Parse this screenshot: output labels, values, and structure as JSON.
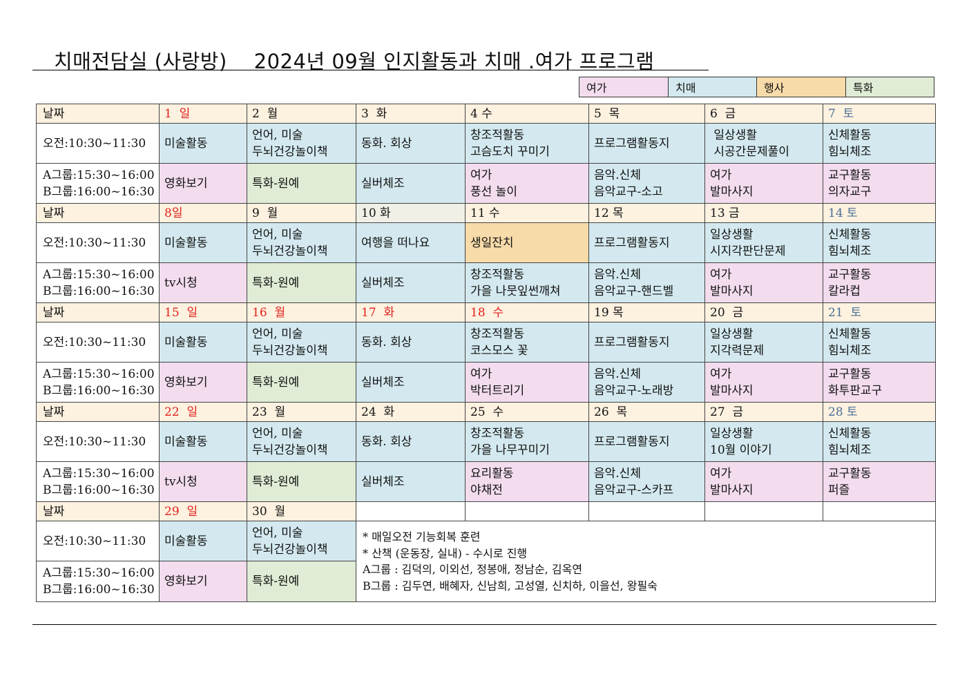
{
  "title": "치매전담실 (사랑방)    2024년 09월 인지활동과 치매 .여가 프로그램",
  "legend": [
    "여가",
    "치매",
    "행사",
    "특화"
  ],
  "colors": {
    "여가": "#f2dcee",
    "치매": "#d3e9ef",
    "행사": "#f7dba9",
    "특화": "#e0ecd5",
    "date_row": "#fdf1e0",
    "sunday_red": "#e0201a",
    "saturday_blue": "#4a6f96"
  },
  "labels": {
    "date": "날짜",
    "morning": "오전:10:30~11:30",
    "group_a": "A그룹:15:30~16:00",
    "group_b": "B그룹:16:00~16:30"
  },
  "weeks": [
    {
      "dates": [
        {
          "text": "1  일",
          "color": "red"
        },
        {
          "text": "2  월"
        },
        {
          "text": "3  화"
        },
        {
          "text": "4 수"
        },
        {
          "text": "5  목"
        },
        {
          "text": "6  금"
        },
        {
          "text": "7  토",
          "color": "blue"
        }
      ],
      "morning": [
        {
          "lines": [
            "미술활동"
          ],
          "type": "치매"
        },
        {
          "lines": [
            "언어, 미술",
            "두뇌건강놀이책"
          ],
          "type": "치매"
        },
        {
          "lines": [
            "동화. 회상"
          ],
          "type": "치매"
        },
        {
          "lines": [
            "창조적활동",
            "고슴도치 꾸미기"
          ],
          "type": "치매"
        },
        {
          "lines": [
            "프로그램활동지"
          ],
          "type": "치매"
        },
        {
          "lines": [
            " 일상생활",
            " 시공간문제풀이"
          ],
          "type": "치매"
        },
        {
          "lines": [
            "신체활동",
            "힘뇌체조"
          ],
          "type": "치매"
        }
      ],
      "afternoon": [
        {
          "lines": [
            "영화보기"
          ],
          "type": "여가"
        },
        {
          "lines": [
            "특화-원예"
          ],
          "type": "특화"
        },
        {
          "lines": [
            "실버체조"
          ],
          "type": "치매"
        },
        {
          "lines": [
            "여가",
            "풍선 놀이"
          ],
          "type": "여가"
        },
        {
          "lines": [
            "음악.신체",
            "음악교구-소고"
          ],
          "type": "치매"
        },
        {
          "lines": [
            "여가",
            "발마사지"
          ],
          "type": "여가"
        },
        {
          "lines": [
            "교구활동",
            "의자교구"
          ],
          "type": "여가"
        }
      ]
    },
    {
      "dates": [
        {
          "text": "8일",
          "color": "red"
        },
        {
          "text": "9  월"
        },
        {
          "text": "10 화",
          "bg": "grey"
        },
        {
          "text": "11 수"
        },
        {
          "text": "12 목"
        },
        {
          "text": "13 금"
        },
        {
          "text": "14 토",
          "color": "blue"
        }
      ],
      "morning": [
        {
          "lines": [
            "미술활동"
          ],
          "type": "치매"
        },
        {
          "lines": [
            "언어, 미술",
            "두뇌건강놀이책"
          ],
          "type": "치매"
        },
        {
          "lines": [
            "여행을 떠나요"
          ],
          "type": "치매"
        },
        {
          "lines": [
            "생일잔치"
          ],
          "type": "행사"
        },
        {
          "lines": [
            "프로그램활동지"
          ],
          "type": "치매"
        },
        {
          "lines": [
            "일상생활",
            "시지각판단문제"
          ],
          "type": "치매"
        },
        {
          "lines": [
            "신체활동",
            "힘뇌체조"
          ],
          "type": "치매"
        }
      ],
      "afternoon": [
        {
          "lines": [
            "tv시청"
          ],
          "type": "여가"
        },
        {
          "lines": [
            "특화-원예"
          ],
          "type": "특화"
        },
        {
          "lines": [
            "실버체조"
          ],
          "type": "치매"
        },
        {
          "lines": [
            "창조적활동",
            "가을 나뭇잎썬깨쳐"
          ],
          "type": "치매"
        },
        {
          "lines": [
            "음악.신체",
            "음악교구-핸드벨"
          ],
          "type": "치매"
        },
        {
          "lines": [
            "여가",
            "발마사지"
          ],
          "type": "여가"
        },
        {
          "lines": [
            "교구활동",
            "칼라컵"
          ],
          "type": "여가"
        }
      ]
    },
    {
      "dates": [
        {
          "text": "15  일",
          "color": "red"
        },
        {
          "text": "16  월",
          "color": "red"
        },
        {
          "text": "17  화",
          "color": "red"
        },
        {
          "text": "18  수",
          "color": "red"
        },
        {
          "text": "19 목"
        },
        {
          "text": "20  금"
        },
        {
          "text": "21  토",
          "color": "blue"
        }
      ],
      "morning": [
        {
          "lines": [
            "미술활동"
          ],
          "type": "치매"
        },
        {
          "lines": [
            "언어, 미술",
            "두뇌건강놀이책"
          ],
          "type": "치매"
        },
        {
          "lines": [
            "동화. 회상"
          ],
          "type": "치매"
        },
        {
          "lines": [
            "창조적활동",
            "코스모스 꽃"
          ],
          "type": "치매"
        },
        {
          "lines": [
            "프로그램활동지"
          ],
          "type": "치매"
        },
        {
          "lines": [
            "일상생활",
            "지각력문제"
          ],
          "type": "치매"
        },
        {
          "lines": [
            "신체활동",
            "힘뇌체조"
          ],
          "type": "치매"
        }
      ],
      "afternoon": [
        {
          "lines": [
            "영화보기"
          ],
          "type": "여가"
        },
        {
          "lines": [
            "특화-원예"
          ],
          "type": "특화"
        },
        {
          "lines": [
            "실버체조"
          ],
          "type": "치매"
        },
        {
          "lines": [
            "여가",
            "박터트리기"
          ],
          "type": "여가"
        },
        {
          "lines": [
            "음악.신체",
            "음악교구-노래방"
          ],
          "type": "치매"
        },
        {
          "lines": [
            "여가",
            "발마사지"
          ],
          "type": "여가"
        },
        {
          "lines": [
            "교구활동",
            "화투판교구"
          ],
          "type": "여가"
        }
      ]
    },
    {
      "dates": [
        {
          "text": "22  일",
          "color": "red"
        },
        {
          "text": "23  월"
        },
        {
          "text": "24  화"
        },
        {
          "text": "25  수"
        },
        {
          "text": "26  목"
        },
        {
          "text": "27  금"
        },
        {
          "text": "28 토",
          "color": "blue"
        }
      ],
      "morning": [
        {
          "lines": [
            "미술활동"
          ],
          "type": "치매"
        },
        {
          "lines": [
            "언어, 미술",
            "두뇌건강놀이책"
          ],
          "type": "치매"
        },
        {
          "lines": [
            "동화. 회상"
          ],
          "type": "치매"
        },
        {
          "lines": [
            "창조적활동",
            "가을 나무꾸미기"
          ],
          "type": "치매"
        },
        {
          "lines": [
            "프로그램활동지"
          ],
          "type": "치매"
        },
        {
          "lines": [
            "일상생활",
            "10월 이야기"
          ],
          "type": "치매"
        },
        {
          "lines": [
            "신체활동",
            "힘뇌체조"
          ],
          "type": "치매"
        }
      ],
      "afternoon": [
        {
          "lines": [
            "tv시청"
          ],
          "type": "여가"
        },
        {
          "lines": [
            "특화-원예"
          ],
          "type": "특화"
        },
        {
          "lines": [
            "실버체조"
          ],
          "type": "치매"
        },
        {
          "lines": [
            "요리활동",
            "야채전"
          ],
          "type": "여가"
        },
        {
          "lines": [
            "음악.신체",
            "음악교구-스카프"
          ],
          "type": "치매"
        },
        {
          "lines": [
            "여가",
            "발마사지"
          ],
          "type": "여가"
        },
        {
          "lines": [
            "교구활동",
            "퍼즐"
          ],
          "type": "여가"
        }
      ]
    }
  ],
  "last_week": {
    "dates": [
      {
        "text": "29  일",
        "color": "red"
      },
      {
        "text": "30  월"
      }
    ],
    "morning": [
      {
        "lines": [
          "미술활동"
        ],
        "type": "치매"
      },
      {
        "lines": [
          "언어, 미술",
          "두뇌건강놀이책"
        ],
        "type": "치매"
      }
    ],
    "afternoon": [
      {
        "lines": [
          "영화보기"
        ],
        "type": "여가"
      },
      {
        "lines": [
          "특화-원예"
        ],
        "type": "특화"
      }
    ]
  },
  "notes": [
    "* 매일오전 기능회복 훈련",
    "* 산책 (운동장, 실내) - 수시로 진행",
    "A그룹 : 김덕의, 이외선, 정봉애, 정남순, 김옥연",
    "B그룹 : 김두연, 배혜자, 신남희, 고성열, 신치하, 이을선, 왕필숙"
  ]
}
